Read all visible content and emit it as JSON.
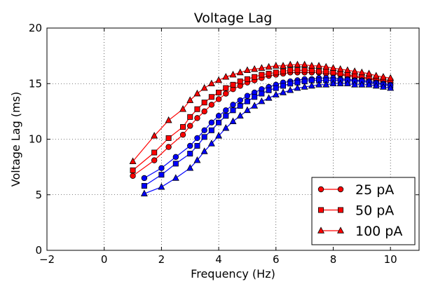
{
  "chart_data": {
    "type": "line",
    "title": "Voltage Lag",
    "xlabel": "Frequency (Hz)",
    "ylabel": "Voltage Lag (ms)",
    "xlim": [
      -2,
      11
    ],
    "ylim": [
      0,
      20
    ],
    "xticks": [
      -2,
      0,
      2,
      4,
      6,
      8,
      10
    ],
    "yticks": [
      0,
      5,
      10,
      15,
      20
    ],
    "grid": true,
    "legend_position": "lower-right",
    "x_red": [
      1.0,
      1.75,
      2.25,
      2.75,
      3.0,
      3.25,
      3.5,
      3.75,
      4.0,
      4.25,
      4.5,
      4.75,
      5.0,
      5.25,
      5.5,
      5.75,
      6.0,
      6.25,
      6.5,
      6.75,
      7.0,
      7.25,
      7.5,
      7.75,
      8.0,
      8.25,
      8.5,
      8.75,
      9.0,
      9.25,
      9.5,
      9.75,
      10.0
    ],
    "x_blue": [
      1.4,
      2.0,
      2.5,
      3.0,
      3.25,
      3.5,
      3.75,
      4.0,
      4.25,
      4.5,
      4.75,
      5.0,
      5.25,
      5.5,
      5.75,
      6.0,
      6.25,
      6.5,
      6.75,
      7.0,
      7.25,
      7.5,
      7.75,
      8.0,
      8.25,
      8.5,
      8.75,
      9.0,
      9.25,
      9.5,
      9.75,
      10.0
    ],
    "series": [
      {
        "name": "25 pA",
        "color": "#ff0000",
        "marker": "circle",
        "x_key": "x_red",
        "values": [
          6.7,
          8.1,
          9.3,
          10.4,
          11.2,
          11.9,
          12.5,
          13.1,
          13.6,
          14.1,
          14.5,
          14.8,
          15.1,
          15.3,
          15.5,
          15.7,
          15.8,
          15.9,
          16.0,
          16.0,
          16.0,
          16.0,
          16.0,
          15.9,
          15.9,
          15.8,
          15.7,
          15.6,
          15.5,
          15.4,
          15.3,
          15.2,
          15.1
        ]
      },
      {
        "name": "50 pA",
        "color": "#ff0000",
        "marker": "square",
        "x_key": "x_red",
        "values": [
          7.2,
          8.8,
          10.1,
          11.1,
          12.0,
          12.7,
          13.3,
          13.8,
          14.2,
          14.6,
          14.9,
          15.2,
          15.4,
          15.6,
          15.8,
          15.9,
          16.0,
          16.1,
          16.2,
          16.2,
          16.2,
          16.2,
          16.1,
          16.1,
          16.0,
          15.9,
          15.8,
          15.7,
          15.6,
          15.5,
          15.4,
          15.3,
          15.2
        ]
      },
      {
        "name": "100 pA",
        "color": "#ff0000",
        "marker": "triangle",
        "x_key": "x_red",
        "values": [
          8.0,
          10.3,
          11.7,
          12.7,
          13.5,
          14.1,
          14.6,
          15.0,
          15.3,
          15.6,
          15.8,
          16.0,
          16.2,
          16.3,
          16.4,
          16.5,
          16.6,
          16.6,
          16.7,
          16.7,
          16.7,
          16.6,
          16.6,
          16.5,
          16.4,
          16.3,
          16.2,
          16.1,
          16.0,
          15.9,
          15.7,
          15.6,
          15.5
        ]
      },
      {
        "color": "#0000ff",
        "marker": "circle",
        "x_key": "x_blue",
        "values": [
          6.5,
          7.4,
          8.4,
          9.4,
          10.1,
          10.8,
          11.5,
          12.1,
          12.6,
          13.1,
          13.5,
          13.9,
          14.2,
          14.5,
          14.7,
          14.9,
          15.1,
          15.2,
          15.3,
          15.4,
          15.4,
          15.5,
          15.5,
          15.5,
          15.4,
          15.4,
          15.3,
          15.3,
          15.2,
          15.1,
          15.0,
          14.9
        ]
      },
      {
        "color": "#0000ff",
        "marker": "square",
        "x_key": "x_blue",
        "values": [
          5.8,
          6.8,
          7.8,
          8.7,
          9.4,
          10.2,
          10.8,
          11.5,
          12.1,
          12.6,
          13.0,
          13.4,
          13.8,
          14.1,
          14.4,
          14.6,
          14.8,
          15.0,
          15.1,
          15.2,
          15.3,
          15.3,
          15.3,
          15.3,
          15.3,
          15.3,
          15.2,
          15.2,
          15.1,
          15.0,
          14.9,
          14.8
        ]
      },
      {
        "color": "#0000ff",
        "marker": "triangle",
        "x_key": "x_blue",
        "values": [
          5.1,
          5.7,
          6.5,
          7.4,
          8.1,
          8.9,
          9.6,
          10.3,
          11.0,
          11.6,
          12.1,
          12.6,
          13.0,
          13.4,
          13.7,
          14.0,
          14.2,
          14.4,
          14.6,
          14.7,
          14.8,
          14.9,
          14.9,
          15.0,
          15.0,
          15.0,
          14.9,
          14.9,
          14.9,
          14.8,
          14.7,
          14.6
        ]
      }
    ]
  }
}
